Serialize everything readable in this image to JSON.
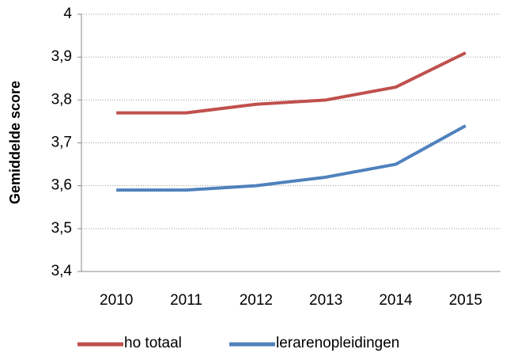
{
  "chart_data": {
    "type": "line",
    "y_label": "Gemiddelde score",
    "categories": [
      "2010",
      "2011",
      "2012",
      "2013",
      "2014",
      "2015"
    ],
    "series": [
      {
        "name": "ho totaal",
        "color": "#c0504d",
        "values": [
          3.77,
          3.77,
          3.79,
          3.8,
          3.83,
          3.91
        ]
      },
      {
        "name": "lerarenopleidingen",
        "color": "#4f81bd",
        "values": [
          3.59,
          3.59,
          3.6,
          3.62,
          3.65,
          3.74
        ]
      }
    ],
    "ylim": [
      3.4,
      4
    ],
    "yticks": [
      {
        "value": 3.4,
        "label": "3,4"
      },
      {
        "value": 3.5,
        "label": "3,5"
      },
      {
        "value": 3.6,
        "label": "3,6"
      },
      {
        "value": 3.7,
        "label": "3,7"
      },
      {
        "value": 3.8,
        "label": "3,8"
      },
      {
        "value": 3.9,
        "label": "3,9"
      },
      4
    ],
    "grid": true,
    "legend": "bottom"
  }
}
